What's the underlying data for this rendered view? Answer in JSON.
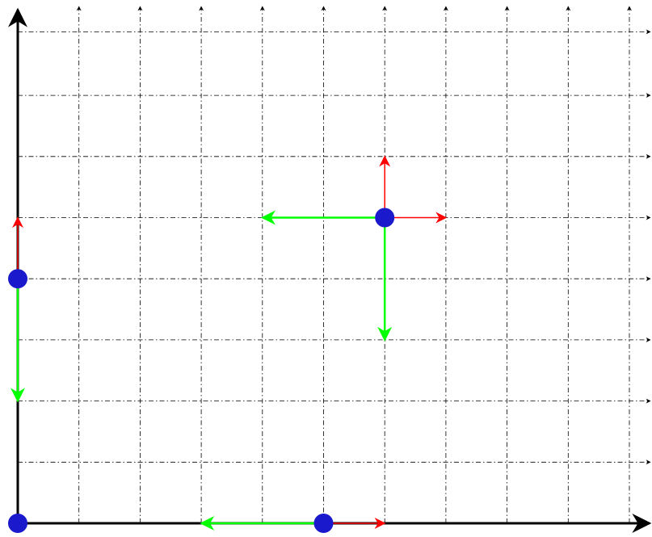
{
  "diagram": {
    "colors": {
      "grid": "#000000",
      "axis": "#000000",
      "point": "#1a1acc",
      "red_vector": "#ff0000",
      "green_vector": "#00ff00",
      "background": "#ffffff"
    },
    "grid_lines": {
      "vertical_count": 10,
      "horizontal_count": 8,
      "style": "dash-dot",
      "arrowheads": true
    },
    "points": [
      {
        "id": "origin",
        "x": 0,
        "y": 0
      },
      {
        "id": "left-edge",
        "x": 0,
        "y": 4
      },
      {
        "id": "bottom-edge",
        "x": 5,
        "y": 0
      },
      {
        "id": "interior",
        "x": 6,
        "y": 5
      }
    ],
    "vectors": [
      {
        "id": "left-edge-red-up",
        "color": "red",
        "from": [
          0,
          4
        ],
        "to": [
          0,
          5
        ]
      },
      {
        "id": "left-edge-green-down",
        "color": "green",
        "from": [
          0,
          4
        ],
        "to": [
          0,
          2
        ]
      },
      {
        "id": "bottom-edge-red-right",
        "color": "red",
        "from": [
          5,
          0
        ],
        "to": [
          6,
          0
        ]
      },
      {
        "id": "bottom-edge-green-left",
        "color": "green",
        "from": [
          5,
          0
        ],
        "to": [
          3,
          0
        ]
      },
      {
        "id": "interior-red-up",
        "color": "red",
        "from": [
          6,
          5
        ],
        "to": [
          6,
          6
        ]
      },
      {
        "id": "interior-red-right",
        "color": "red",
        "from": [
          6,
          5
        ],
        "to": [
          7,
          5
        ]
      },
      {
        "id": "interior-green-left",
        "color": "green",
        "from": [
          6,
          5
        ],
        "to": [
          4,
          5
        ]
      },
      {
        "id": "interior-green-down",
        "color": "green",
        "from": [
          6,
          5
        ],
        "to": [
          6,
          3
        ]
      }
    ]
  }
}
